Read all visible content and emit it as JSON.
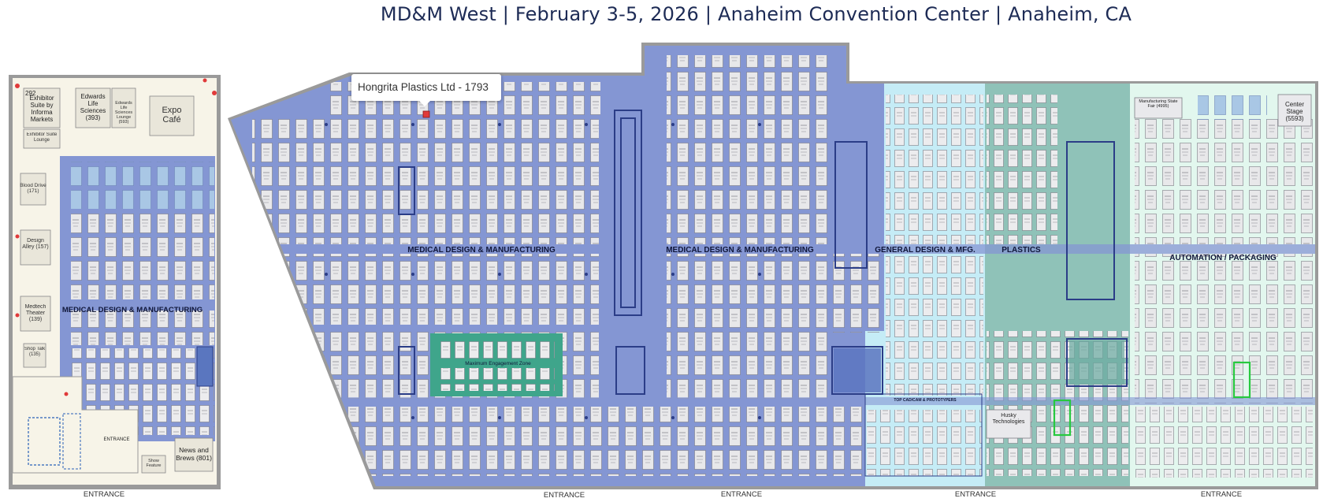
{
  "header": {
    "title": "MD&M West | February 3-5, 2026 | Anaheim Convention Center | Anaheim, CA"
  },
  "tooltip": {
    "text": "Hongrita Plastics Ltd - 1793"
  },
  "left_hall": {
    "label": "MEDICAL DESIGN & MANUFACTURING",
    "rooms": {
      "exhibitor_suite": "Exhibitor Suite by Informa Markets",
      "exhibitor_suite_no": "292",
      "edwards": "Edwards Life Sciences (393)",
      "edwards_lounge": "Edwards Life Sciences Lounge (593)",
      "expo_cafe": "Expo Café",
      "exhibitor_lounge": "Exhibitor Suite Lounge",
      "blood_drive": "Blood Drive (171)",
      "design_alley": "Design Alley (157)",
      "medtech_theater": "Medtech Theater (139)",
      "shop_talk": "Shop Talk (135)",
      "entrance_small": "ENTRANCE",
      "news_brews": "News and Brews (801)",
      "show_feature": "Show Feature"
    },
    "entrance": "ENTRANCE"
  },
  "main_hall": {
    "section_labels": {
      "mdm_1": "MEDICAL DESIGN & MANUFACTURING",
      "mdm_2": "MEDICAL DESIGN & MANUFACTURING",
      "general": "GENERAL DESIGN & MFG.",
      "plastics": "PLASTICS",
      "automation": "AUTOMATION / PACKAGING"
    },
    "zones": {
      "engagement": "Maximum Engagement Zone",
      "top_cadcam": "TOP CAD/CAM & PROTOTYPERS",
      "husky": "Husky Technologies",
      "center_stage": "Center Stage (5593)",
      "manufacturing_fair": "Manufacturing State Fair (4995)"
    },
    "entrances": [
      "ENTRANCE",
      "ENTRANCE",
      "ENTRANCE",
      "ENTRANCE"
    ]
  },
  "colors": {
    "mdm_blue": "#8496d3",
    "booth": "#e9e9ec",
    "booth_blue": "#a8c8e6",
    "general_cyan": "#c5ecf6",
    "plastics_teal": "#8fc2b8",
    "automation_mint": "#e2f7ee",
    "engagement_green": "#3fa58b",
    "outline_dark": "#2b3d87",
    "left_floor": "#f7f4e8",
    "highlight_green": "#27c93f",
    "marker_red": "#e03a3a",
    "wall_gray": "#8e8e8e"
  }
}
